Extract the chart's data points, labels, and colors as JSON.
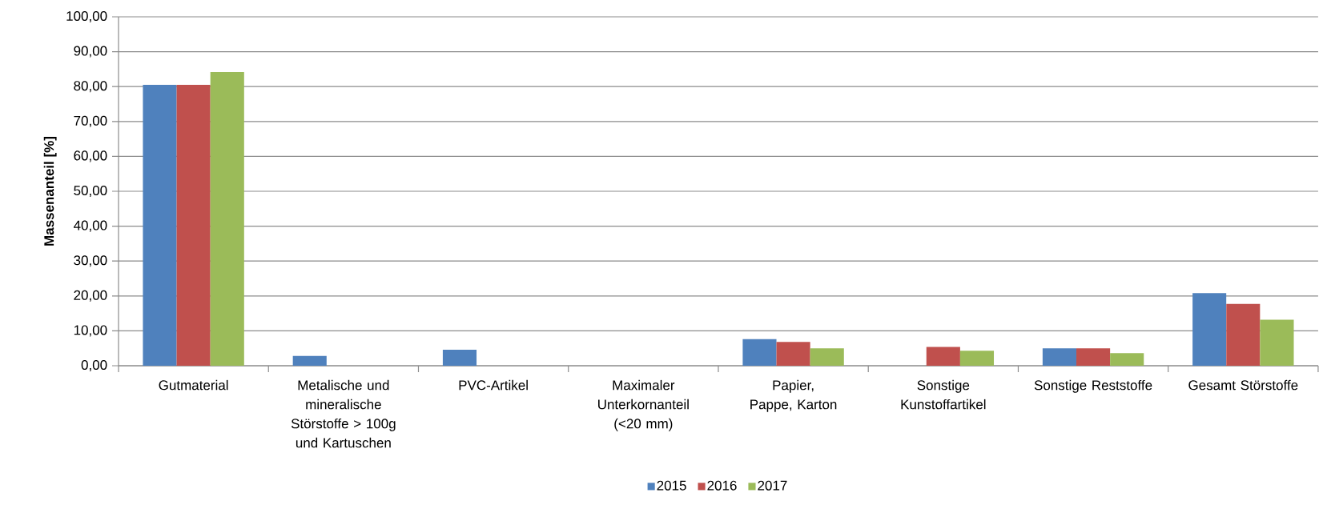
{
  "chart_data": {
    "type": "bar",
    "ylabel": "Massenanteil [%]",
    "categories": [
      "Gutmaterial",
      "Metalische und mineralische Störstoffe > 100g und Kartuschen",
      "PVC-Artikel",
      "Maximaler Unterkornanteil (<20 mm)",
      "Papier, Pappe, Karton",
      "Sonstige Kunstoffartikel",
      "Sonstige Reststoffe",
      "Gesamt Störstoffe"
    ],
    "series": [
      {
        "name": "2015",
        "color": "#4f81bd",
        "values": [
          80.5,
          2.8,
          4.6,
          0,
          7.6,
          0,
          5.0,
          20.8
        ]
      },
      {
        "name": "2016",
        "color": "#c0504d",
        "values": [
          80.5,
          0,
          0,
          0,
          6.8,
          5.4,
          5.0,
          17.7
        ]
      },
      {
        "name": "2017",
        "color": "#9bbb59",
        "values": [
          84.2,
          0,
          0,
          0,
          5.0,
          4.3,
          3.6,
          13.2
        ]
      }
    ],
    "ylim": [
      0,
      100
    ],
    "yticks": [
      {
        "value": 0,
        "label": "0,00"
      },
      {
        "value": 10,
        "label": "10,00"
      },
      {
        "value": 20,
        "label": "20,00"
      },
      {
        "value": 30,
        "label": "30,00"
      },
      {
        "value": 40,
        "label": "40,00"
      },
      {
        "value": 50,
        "label": "50,00"
      },
      {
        "value": 60,
        "label": "60,00"
      },
      {
        "value": 70,
        "label": "70,00"
      },
      {
        "value": 80,
        "label": "80,00"
      },
      {
        "value": 90,
        "label": "90,00"
      },
      {
        "value": 100,
        "label": "100,00"
      }
    ],
    "grid": "y",
    "legend": "bottom"
  }
}
